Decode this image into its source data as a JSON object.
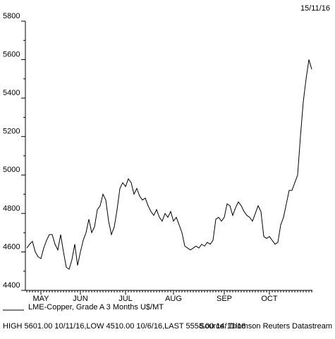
{
  "chart_data": {
    "type": "line",
    "date": "15/11/16",
    "categories": [
      null,
      null,
      null,
      null,
      null,
      "MAY",
      null,
      null,
      null,
      null,
      null,
      null,
      null,
      null,
      null,
      null,
      null,
      null,
      null,
      "JUN",
      null,
      null,
      null,
      null,
      null,
      null,
      null,
      null,
      null,
      null,
      null,
      null,
      null,
      null,
      null,
      "JUL",
      null,
      null,
      null,
      null,
      null,
      null,
      null,
      null,
      null,
      null,
      null,
      null,
      null,
      null,
      null,
      null,
      "AUG",
      null,
      null,
      null,
      null,
      null,
      null,
      null,
      null,
      null,
      null,
      null,
      null,
      null,
      null,
      null,
      null,
      null,
      "SEP",
      null,
      null,
      null,
      null,
      null,
      null,
      null,
      null,
      null,
      null,
      null,
      null,
      null,
      null,
      null,
      "OCT",
      null,
      null,
      null,
      null,
      null,
      null,
      null,
      null,
      null,
      null,
      null,
      null,
      null,
      null,
      null
    ],
    "series": [
      {
        "name": "LME-Copper, Grade A 3 Months U$/MT",
        "color": "#000000",
        "values": [
          4620,
          4640,
          4655,
          4600,
          4575,
          4565,
          4620,
          4660,
          4690,
          4690,
          4640,
          4610,
          4690,
          4600,
          4520,
          4510,
          4560,
          4640,
          4530,
          4600,
          4660,
          4700,
          4770,
          4700,
          4730,
          4820,
          4840,
          4900,
          4870,
          4760,
          4690,
          4730,
          4820,
          4930,
          4960,
          4940,
          4980,
          4960,
          4900,
          4930,
          4890,
          4870,
          4880,
          4840,
          4810,
          4790,
          4820,
          4780,
          4760,
          4800,
          4780,
          4810,
          4760,
          4780,
          4740,
          4700,
          4630,
          4620,
          4610,
          4620,
          4630,
          4620,
          4640,
          4630,
          4650,
          4640,
          4660,
          4770,
          4780,
          4760,
          4780,
          4850,
          4840,
          4790,
          4830,
          4860,
          4840,
          4810,
          4790,
          4780,
          4760,
          4800,
          4840,
          4810,
          4680,
          4670,
          4680,
          4660,
          4640,
          4650,
          4740,
          4780,
          4850,
          4920,
          4920,
          4960,
          5000,
          5200,
          5380,
          5500,
          5600,
          5550
        ]
      }
    ],
    "ylim": [
      4400,
      5800
    ],
    "yticks": [
      4400,
      4600,
      4800,
      5000,
      5200,
      5400,
      5600,
      5800
    ],
    "footer": "HIGH 5601.00 10/11/16,LOW 4510.00 10/6/16,LAST 5558.00 14/11/16",
    "source": "Source: Thomson Reuters Datastream"
  }
}
